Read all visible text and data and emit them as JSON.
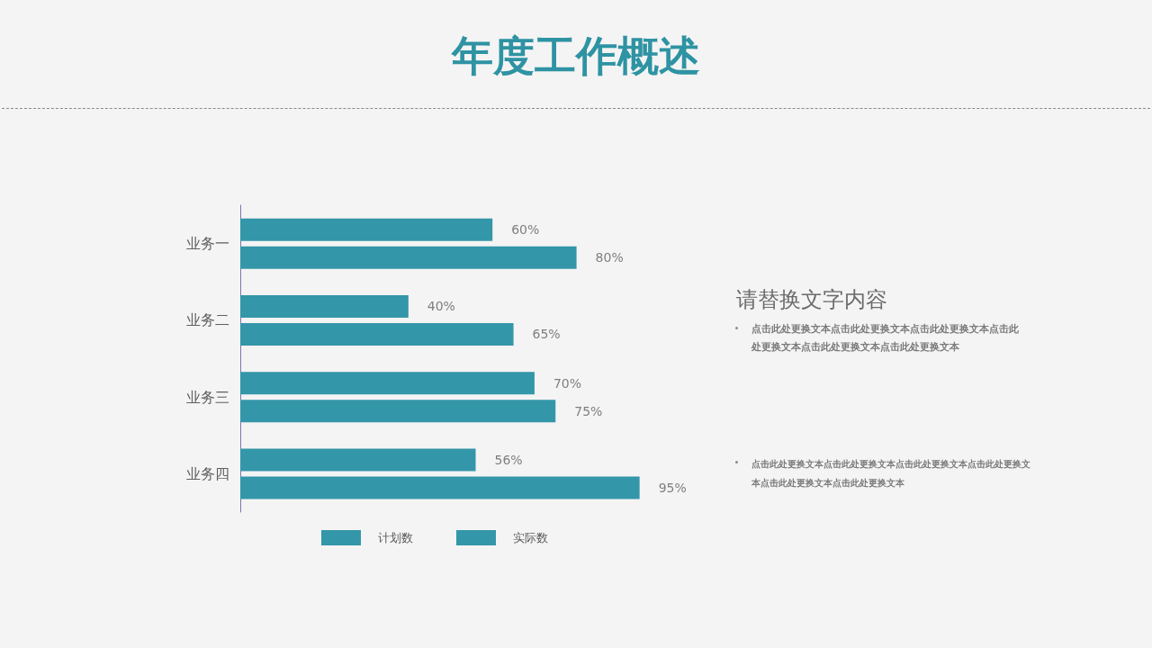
{
  "chart_data": {
    "type": "bar",
    "orientation": "horizontal",
    "title": "年度工作概述",
    "categories": [
      "业务一",
      "业务二",
      "业务三",
      "业务四"
    ],
    "series": [
      {
        "name": "计划数",
        "color": "#3496a9",
        "values": [
          60,
          40,
          70,
          56
        ],
        "value_labels": [
          "60%",
          "40%",
          "70%",
          "56%"
        ]
      },
      {
        "name": "实际数",
        "color": "#3496a9",
        "values": [
          80,
          65,
          75,
          95
        ],
        "value_labels": [
          "80%",
          "65%",
          "75%",
          "95%"
        ]
      }
    ],
    "legend": "bottom",
    "tick_labels": "y",
    "annotations": [
      "请替换文字内容",
      "点击此处更换文本点击此处更换文本点击此处更换文本点击此处更换文本点击此处更换文本点击此处更换文本",
      "点击此处更换文本点击此处更换文本点击此处更换文本点击此处更换文本点击此处更换文本点击此处更换文本"
    ]
  }
}
